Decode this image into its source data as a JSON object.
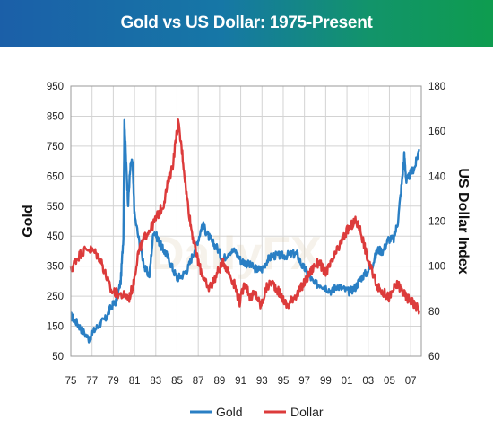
{
  "chart_data": {
    "type": "line",
    "title": "Gold vs US Dollar: 1975-Present",
    "watermark": "DailyFX",
    "colors": {
      "Gold": "#2a7fc4",
      "Dollar": "#dc3b3b"
    },
    "x_ticks": [
      "75",
      "77",
      "79",
      "81",
      "83",
      "85",
      "87",
      "89",
      "91",
      "93",
      "95",
      "97",
      "99",
      "01",
      "03",
      "05",
      "07"
    ],
    "xlim": [
      1975,
      2008
    ],
    "left_axis": {
      "label": "Gold",
      "ticks": [
        "950",
        "850",
        "750",
        "650",
        "550",
        "450",
        "350",
        "250",
        "150",
        "50"
      ],
      "ylim": [
        50,
        950
      ]
    },
    "right_axis": {
      "label": "US Dollar Index",
      "ticks": [
        "180",
        "160",
        "140",
        "120",
        "100",
        "80",
        "60"
      ],
      "ylim": [
        60,
        180
      ]
    },
    "grid": true,
    "legend_position": "bottom-center",
    "series": [
      {
        "name": "Gold",
        "axis": "left",
        "points": [
          [
            1975.0,
            185
          ],
          [
            1975.5,
            165
          ],
          [
            1976.0,
            140
          ],
          [
            1976.7,
            108
          ],
          [
            1977.3,
            140
          ],
          [
            1977.8,
            160
          ],
          [
            1978.3,
            175
          ],
          [
            1978.8,
            215
          ],
          [
            1979.3,
            235
          ],
          [
            1979.7,
            300
          ],
          [
            1979.95,
            450
          ],
          [
            1980.05,
            835
          ],
          [
            1980.2,
            700
          ],
          [
            1980.4,
            560
          ],
          [
            1980.6,
            680
          ],
          [
            1980.8,
            700
          ],
          [
            1981.0,
            520
          ],
          [
            1981.5,
            420
          ],
          [
            1982.0,
            340
          ],
          [
            1982.4,
            320
          ],
          [
            1982.8,
            470
          ],
          [
            1983.2,
            440
          ],
          [
            1983.6,
            410
          ],
          [
            1984.0,
            390
          ],
          [
            1984.5,
            350
          ],
          [
            1985.0,
            310
          ],
          [
            1985.5,
            320
          ],
          [
            1986.0,
            340
          ],
          [
            1986.5,
            390
          ],
          [
            1987.0,
            440
          ],
          [
            1987.4,
            490
          ],
          [
            1987.8,
            460
          ],
          [
            1988.3,
            430
          ],
          [
            1988.8,
            410
          ],
          [
            1989.3,
            370
          ],
          [
            1989.9,
            400
          ],
          [
            1990.5,
            400
          ],
          [
            1991.0,
            370
          ],
          [
            1991.5,
            360
          ],
          [
            1992.0,
            350
          ],
          [
            1992.5,
            340
          ],
          [
            1993.0,
            340
          ],
          [
            1993.5,
            370
          ],
          [
            1994.0,
            385
          ],
          [
            1994.6,
            385
          ],
          [
            1995.2,
            385
          ],
          [
            1995.8,
            390
          ],
          [
            1996.3,
            390
          ],
          [
            1996.8,
            350
          ],
          [
            1997.3,
            330
          ],
          [
            1997.9,
            290
          ],
          [
            1998.5,
            290
          ],
          [
            1999.0,
            280
          ],
          [
            1999.6,
            265
          ],
          [
            2000.0,
            285
          ],
          [
            2000.6,
            275
          ],
          [
            2001.2,
            265
          ],
          [
            2001.8,
            280
          ],
          [
            2002.3,
            310
          ],
          [
            2002.9,
            330
          ],
          [
            2003.4,
            355
          ],
          [
            2003.9,
            405
          ],
          [
            2004.4,
            400
          ],
          [
            2004.9,
            440
          ],
          [
            2005.4,
            440
          ],
          [
            2005.8,
            500
          ],
          [
            2006.2,
            640
          ],
          [
            2006.4,
            720
          ],
          [
            2006.6,
            630
          ],
          [
            2007.0,
            660
          ],
          [
            2007.4,
            680
          ],
          [
            2007.8,
            740
          ]
        ]
      },
      {
        "name": "Dollar",
        "axis": "right",
        "points": [
          [
            1975.0,
            98
          ],
          [
            1975.5,
            103
          ],
          [
            1976.0,
            106
          ],
          [
            1976.6,
            108
          ],
          [
            1977.3,
            106
          ],
          [
            1977.8,
            103
          ],
          [
            1978.3,
            96
          ],
          [
            1978.8,
            89
          ],
          [
            1979.3,
            88
          ],
          [
            1980.0,
            87
          ],
          [
            1980.5,
            86
          ],
          [
            1980.9,
            92
          ],
          [
            1981.3,
            105
          ],
          [
            1981.7,
            110
          ],
          [
            1982.2,
            115
          ],
          [
            1982.7,
            118
          ],
          [
            1983.2,
            123
          ],
          [
            1983.7,
            127
          ],
          [
            1984.2,
            138
          ],
          [
            1984.6,
            145
          ],
          [
            1985.1,
            164
          ],
          [
            1985.5,
            150
          ],
          [
            1985.9,
            132
          ],
          [
            1986.3,
            118
          ],
          [
            1986.7,
            108
          ],
          [
            1987.1,
            100
          ],
          [
            1987.5,
            95
          ],
          [
            1987.9,
            90
          ],
          [
            1988.4,
            93
          ],
          [
            1988.9,
            98
          ],
          [
            1989.4,
            102
          ],
          [
            1989.9,
            97
          ],
          [
            1990.4,
            92
          ],
          [
            1990.9,
            84
          ],
          [
            1991.4,
            93
          ],
          [
            1991.9,
            86
          ],
          [
            1992.4,
            88
          ],
          [
            1992.9,
            82
          ],
          [
            1993.4,
            90
          ],
          [
            1993.9,
            93
          ],
          [
            1994.4,
            90
          ],
          [
            1994.9,
            86
          ],
          [
            1995.4,
            82
          ],
          [
            1995.9,
            86
          ],
          [
            1996.4,
            88
          ],
          [
            1996.9,
            92
          ],
          [
            1997.4,
            96
          ],
          [
            1997.9,
            100
          ],
          [
            1998.4,
            102
          ],
          [
            1998.9,
            97
          ],
          [
            1999.4,
            100
          ],
          [
            1999.9,
            105
          ],
          [
            2000.4,
            110
          ],
          [
            2000.9,
            115
          ],
          [
            2001.4,
            118
          ],
          [
            2001.8,
            120
          ],
          [
            2002.2,
            117
          ],
          [
            2002.6,
            110
          ],
          [
            2003.0,
            102
          ],
          [
            2003.5,
            96
          ],
          [
            2004.0,
            90
          ],
          [
            2004.5,
            88
          ],
          [
            2005.0,
            86
          ],
          [
            2005.4,
            90
          ],
          [
            2005.8,
            92
          ],
          [
            2006.2,
            89
          ],
          [
            2006.6,
            86
          ],
          [
            2007.0,
            85
          ],
          [
            2007.4,
            83
          ],
          [
            2007.8,
            80
          ]
        ]
      }
    ]
  }
}
